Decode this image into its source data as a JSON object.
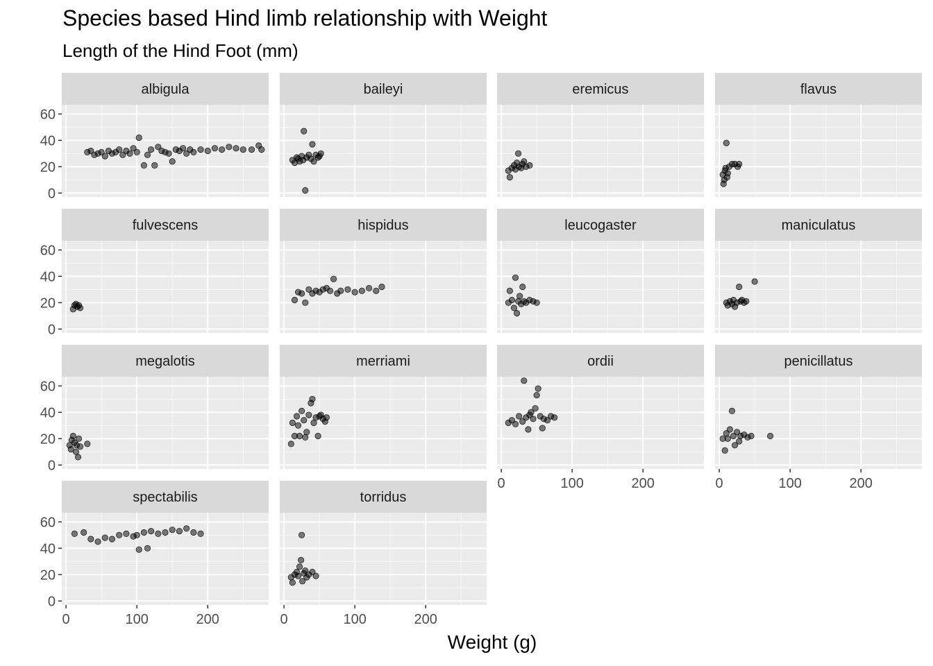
{
  "chart_data": {
    "type": "scatter",
    "layout": "facet_wrap",
    "title": "Species based Hind limb relationship with Weight",
    "subtitle": "Length of the Hind Foot (mm)",
    "xlabel": "Weight (g)",
    "ylabel": "",
    "xlim": [
      -6,
      286
    ],
    "ylim": [
      -3,
      67
    ],
    "x_ticks": [
      0,
      100,
      200
    ],
    "y_ticks": [
      0,
      20,
      40,
      60
    ],
    "point_color": "#000000",
    "point_opacity": 0.5,
    "grid": true,
    "panel_background": "#EBEBEB",
    "strip_background": "#D9D9D9",
    "facets": [
      {
        "name": "albigula",
        "points": [
          [
            30,
            31
          ],
          [
            35,
            32
          ],
          [
            40,
            29
          ],
          [
            45,
            30
          ],
          [
            50,
            31
          ],
          [
            55,
            28
          ],
          [
            60,
            32
          ],
          [
            65,
            30
          ],
          [
            70,
            31
          ],
          [
            75,
            33
          ],
          [
            80,
            29
          ],
          [
            85,
            32
          ],
          [
            90,
            30
          ],
          [
            95,
            34
          ],
          [
            100,
            31
          ],
          [
            103,
            42
          ],
          [
            110,
            21
          ],
          [
            115,
            29
          ],
          [
            120,
            33
          ],
          [
            125,
            21
          ],
          [
            130,
            35
          ],
          [
            135,
            32
          ],
          [
            140,
            31
          ],
          [
            145,
            30
          ],
          [
            150,
            24
          ],
          [
            155,
            33
          ],
          [
            160,
            32
          ],
          [
            165,
            34
          ],
          [
            170,
            30
          ],
          [
            175,
            33
          ],
          [
            180,
            31
          ],
          [
            190,
            33
          ],
          [
            200,
            32
          ],
          [
            210,
            34
          ],
          [
            220,
            33
          ],
          [
            230,
            35
          ],
          [
            240,
            34
          ],
          [
            250,
            33
          ],
          [
            262,
            33
          ],
          [
            272,
            36
          ],
          [
            276,
            33
          ]
        ]
      },
      {
        "name": "baileyi",
        "points": [
          [
            12,
            25
          ],
          [
            15,
            23
          ],
          [
            18,
            27
          ],
          [
            20,
            26
          ],
          [
            22,
            24
          ],
          [
            25,
            28
          ],
          [
            27,
            25
          ],
          [
            28,
            47
          ],
          [
            30,
            2
          ],
          [
            32,
            27
          ],
          [
            35,
            29
          ],
          [
            38,
            26
          ],
          [
            40,
            37
          ],
          [
            42,
            24
          ],
          [
            45,
            29
          ],
          [
            48,
            27
          ],
          [
            50,
            28
          ],
          [
            52,
            30
          ]
        ]
      },
      {
        "name": "eremicus",
        "points": [
          [
            10,
            17
          ],
          [
            12,
            12
          ],
          [
            15,
            19
          ],
          [
            18,
            21
          ],
          [
            20,
            18
          ],
          [
            22,
            23
          ],
          [
            24,
            30
          ],
          [
            25,
            20
          ],
          [
            28,
            19
          ],
          [
            30,
            22
          ],
          [
            32,
            24
          ],
          [
            35,
            20
          ],
          [
            40,
            21
          ]
        ]
      },
      {
        "name": "flavus",
        "points": [
          [
            5,
            14
          ],
          [
            6,
            7
          ],
          [
            7,
            10
          ],
          [
            8,
            17
          ],
          [
            9,
            19
          ],
          [
            10,
            38
          ],
          [
            11,
            12
          ],
          [
            12,
            15
          ],
          [
            14,
            20
          ],
          [
            18,
            22
          ],
          [
            22,
            22
          ],
          [
            26,
            20
          ],
          [
            28,
            22
          ]
        ]
      },
      {
        "name": "fulvescens",
        "points": [
          [
            10,
            15
          ],
          [
            12,
            18
          ],
          [
            14,
            19
          ],
          [
            16,
            17
          ],
          [
            18,
            18
          ],
          [
            20,
            16
          ]
        ]
      },
      {
        "name": "hispidus",
        "points": [
          [
            15,
            22
          ],
          [
            20,
            28
          ],
          [
            25,
            27
          ],
          [
            30,
            20
          ],
          [
            35,
            30
          ],
          [
            40,
            27
          ],
          [
            45,
            29
          ],
          [
            50,
            28
          ],
          [
            55,
            30
          ],
          [
            60,
            31
          ],
          [
            65,
            29
          ],
          [
            70,
            38
          ],
          [
            75,
            27
          ],
          [
            80,
            29
          ],
          [
            90,
            30
          ],
          [
            100,
            28
          ],
          [
            110,
            29
          ],
          [
            120,
            31
          ],
          [
            130,
            29
          ],
          [
            138,
            32
          ]
        ]
      },
      {
        "name": "leucogaster",
        "points": [
          [
            10,
            20
          ],
          [
            12,
            29
          ],
          [
            15,
            22
          ],
          [
            18,
            16
          ],
          [
            20,
            39
          ],
          [
            22,
            12
          ],
          [
            24,
            21
          ],
          [
            26,
            25
          ],
          [
            28,
            19
          ],
          [
            30,
            32
          ],
          [
            32,
            21
          ],
          [
            35,
            20
          ],
          [
            40,
            22
          ],
          [
            45,
            21
          ],
          [
            50,
            20
          ]
        ]
      },
      {
        "name": "maniculatus",
        "points": [
          [
            10,
            20
          ],
          [
            12,
            18
          ],
          [
            15,
            21
          ],
          [
            18,
            19
          ],
          [
            20,
            22
          ],
          [
            22,
            17
          ],
          [
            25,
            20
          ],
          [
            28,
            32
          ],
          [
            30,
            21
          ],
          [
            32,
            22
          ],
          [
            35,
            20
          ],
          [
            38,
            21
          ],
          [
            50,
            36
          ]
        ]
      },
      {
        "name": "megalotis",
        "points": [
          [
            5,
            15
          ],
          [
            7,
            12
          ],
          [
            8,
            19
          ],
          [
            10,
            22
          ],
          [
            12,
            17
          ],
          [
            14,
            10
          ],
          [
            15,
            15
          ],
          [
            17,
            6
          ],
          [
            18,
            20
          ],
          [
            20,
            14
          ],
          [
            30,
            16
          ]
        ]
      },
      {
        "name": "merriami",
        "points": [
          [
            10,
            16
          ],
          [
            12,
            32
          ],
          [
            15,
            22
          ],
          [
            18,
            37
          ],
          [
            20,
            30
          ],
          [
            22,
            22
          ],
          [
            25,
            41
          ],
          [
            28,
            34
          ],
          [
            30,
            21
          ],
          [
            32,
            25
          ],
          [
            35,
            38
          ],
          [
            38,
            47
          ],
          [
            40,
            50
          ],
          [
            42,
            32
          ],
          [
            45,
            36
          ],
          [
            48,
            22
          ],
          [
            50,
            37
          ],
          [
            52,
            38
          ],
          [
            55,
            35
          ],
          [
            58,
            33
          ],
          [
            60,
            36
          ]
        ]
      },
      {
        "name": "ordii",
        "points": [
          [
            10,
            32
          ],
          [
            15,
            34
          ],
          [
            20,
            31
          ],
          [
            25,
            37
          ],
          [
            30,
            33
          ],
          [
            32,
            64
          ],
          [
            35,
            36
          ],
          [
            38,
            27
          ],
          [
            40,
            38
          ],
          [
            42,
            40
          ],
          [
            45,
            35
          ],
          [
            48,
            43
          ],
          [
            50,
            53
          ],
          [
            52,
            58
          ],
          [
            55,
            37
          ],
          [
            58,
            28
          ],
          [
            60,
            35
          ],
          [
            65,
            34
          ],
          [
            70,
            37
          ],
          [
            75,
            36
          ]
        ]
      },
      {
        "name": "penicillatus",
        "points": [
          [
            5,
            20
          ],
          [
            8,
            11
          ],
          [
            10,
            24
          ],
          [
            12,
            20
          ],
          [
            15,
            27
          ],
          [
            18,
            41
          ],
          [
            20,
            22
          ],
          [
            22,
            15
          ],
          [
            25,
            25
          ],
          [
            28,
            18
          ],
          [
            30,
            22
          ],
          [
            35,
            23
          ],
          [
            40,
            21
          ],
          [
            45,
            22
          ],
          [
            72,
            22
          ]
        ]
      },
      {
        "name": "spectabilis",
        "points": [
          [
            12,
            51
          ],
          [
            25,
            52
          ],
          [
            35,
            47
          ],
          [
            45,
            45
          ],
          [
            55,
            48
          ],
          [
            65,
            47
          ],
          [
            75,
            50
          ],
          [
            85,
            51
          ],
          [
            95,
            49
          ],
          [
            100,
            50
          ],
          [
            103,
            39
          ],
          [
            110,
            52
          ],
          [
            115,
            40
          ],
          [
            120,
            53
          ],
          [
            130,
            51
          ],
          [
            140,
            52
          ],
          [
            150,
            54
          ],
          [
            160,
            53
          ],
          [
            170,
            55
          ],
          [
            180,
            52
          ],
          [
            190,
            51
          ]
        ]
      },
      {
        "name": "torridus",
        "points": [
          [
            10,
            18
          ],
          [
            12,
            14
          ],
          [
            15,
            20
          ],
          [
            18,
            22
          ],
          [
            20,
            19
          ],
          [
            22,
            26
          ],
          [
            24,
            31
          ],
          [
            25,
            50
          ],
          [
            26,
            15
          ],
          [
            28,
            21
          ],
          [
            30,
            23
          ],
          [
            32,
            18
          ],
          [
            35,
            20
          ],
          [
            40,
            22
          ],
          [
            45,
            19
          ]
        ]
      }
    ]
  }
}
